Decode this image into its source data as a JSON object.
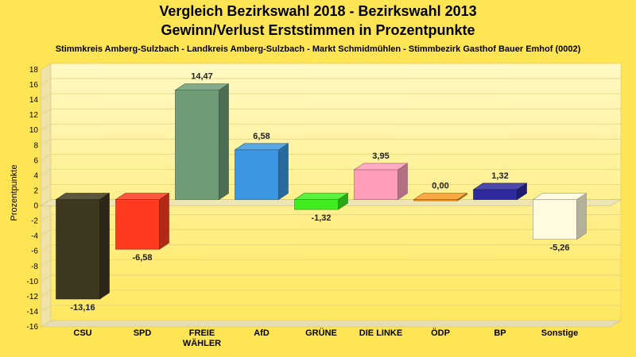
{
  "chart_data": {
    "type": "bar",
    "title": "Vergleich Bezirkswahl 2018 - Bezirkswahl 2013",
    "subtitle": "Gewinn/Verlust Erststimmen in Prozentpunkte",
    "caption": "Stimmkreis Amberg-Sulzbach - Landkreis Amberg-Sulzbach - Markt Schmidmühlen - Stimmbezirk Gasthof Bauer Emhof (0002)",
    "ylabel": "Prozentpunkte",
    "ylim": [
      -16,
      18
    ],
    "yticks": [
      18,
      16,
      14,
      12,
      10,
      8,
      6,
      4,
      2,
      0,
      -2,
      -4,
      -6,
      -8,
      -10,
      -12,
      -14,
      -16
    ],
    "grid": true,
    "categories": [
      "CSU",
      "SPD",
      "FREIE WÄHLER",
      "AfD",
      "GRÜNE",
      "DIE LINKE",
      "ÖDP",
      "BP",
      "Sonstige"
    ],
    "category_lines": [
      [
        "CSU"
      ],
      [
        "SPD"
      ],
      [
        "FREIE",
        "WÄHLER"
      ],
      [
        "AfD"
      ],
      [
        "GRÜNE"
      ],
      [
        "DIE LINKE"
      ],
      [
        "ÖDP"
      ],
      [
        "BP"
      ],
      [
        "Sonstige"
      ]
    ],
    "values": [
      -13.16,
      -6.58,
      14.47,
      6.58,
      -1.32,
      3.95,
      0.0,
      1.32,
      -5.26
    ],
    "value_labels": [
      "-13,16",
      "-6,58",
      "14,47",
      "6,58",
      "-1,32",
      "3,95",
      "0,00",
      "1,32",
      "-5,26"
    ],
    "colors": [
      "#3f3820",
      "#ff3a1e",
      "#6f9b76",
      "#3b97e2",
      "#40ee1f",
      "#ff9ebb",
      "#f99a26",
      "#2e2aa0",
      "#fffbe0"
    ]
  }
}
